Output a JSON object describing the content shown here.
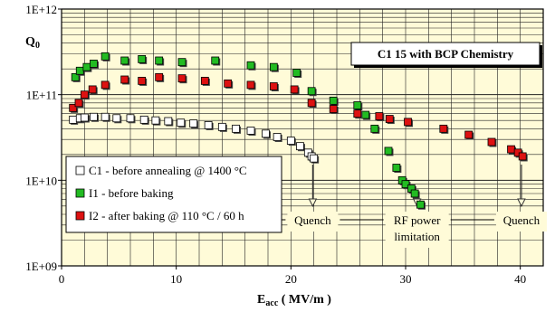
{
  "chart_data": {
    "type": "scatter",
    "title_box": "C1 15 with BCP Chemistry",
    "xlabel_main": "E",
    "xlabel_sub": "acc",
    "xlabel_unit": " ( MV/m )",
    "ylabel_main": "Q",
    "ylabel_sub": "0",
    "x_ticks": [
      "0",
      "10",
      "20",
      "30",
      "40"
    ],
    "y_ticks": [
      "1E+09",
      "1E+10",
      "1E+11",
      "1E+12"
    ],
    "xlim": [
      0,
      42
    ],
    "ylim_log10": [
      9,
      12
    ],
    "y_scale": "log",
    "grid": true,
    "legend_position": "lower-left",
    "series": [
      {
        "name": "C1 - before annealing @ 1400 °C",
        "color": "#ffffff",
        "x": [
          1.0,
          1.6,
          2.0,
          2.8,
          3.8,
          4.8,
          6.0,
          7.2,
          8.2,
          9.3,
          10.4,
          11.5,
          12.8,
          14.0,
          15.2,
          16.5,
          17.8,
          18.8,
          20.0,
          20.8,
          21.5,
          21.8,
          22.0
        ],
        "y": [
          51000000000.0,
          53000000000.0,
          54000000000.0,
          55000000000.0,
          55000000000.0,
          53000000000.0,
          53000000000.0,
          51000000000.0,
          50000000000.0,
          49000000000.0,
          47000000000.0,
          46000000000.0,
          44000000000.0,
          42000000000.0,
          40000000000.0,
          38000000000.0,
          35000000000.0,
          32000000000.0,
          29000000000.0,
          25000000000.0,
          21000000000.0,
          19000000000.0,
          18000000000.0
        ]
      },
      {
        "name": "I1 - before baking",
        "color": "#22bb22",
        "x": [
          1.2,
          1.6,
          2.2,
          2.8,
          3.8,
          5.5,
          7.0,
          8.5,
          10.5,
          13.4,
          16.5,
          18.5,
          20.5,
          21.8,
          23.7,
          25.8,
          26.5,
          27.3,
          28.5,
          29.2,
          29.7,
          30.0,
          30.5,
          30.8,
          31.3
        ],
        "y": [
          160000000000.0,
          190000000000.0,
          210000000000.0,
          230000000000.0,
          280000000000.0,
          250000000000.0,
          260000000000.0,
          250000000000.0,
          240000000000.0,
          250000000000.0,
          220000000000.0,
          210000000000.0,
          180000000000.0,
          110000000000.0,
          85000000000.0,
          75000000000.0,
          58000000000.0,
          40000000000.0,
          22000000000.0,
          14000000000.0,
          10000000000.0,
          9000000000.0,
          8000000000.0,
          7000000000.0,
          5200000000.0
        ]
      },
      {
        "name": "I2 - after baking @ 110 °C / 60 h",
        "color": "#dd1111",
        "x": [
          1.0,
          1.5,
          2.0,
          2.7,
          3.8,
          5.5,
          7.0,
          8.5,
          10.5,
          12.5,
          14.5,
          16.5,
          18.5,
          20.3,
          21.8,
          23.7,
          25.8,
          27.7,
          28.6,
          30.2,
          33.3,
          35.5,
          37.5,
          39.2,
          39.8,
          40.2
        ],
        "y": [
          70000000000.0,
          80000000000.0,
          100000000000.0,
          115000000000.0,
          130000000000.0,
          150000000000.0,
          145000000000.0,
          160000000000.0,
          155000000000.0,
          145000000000.0,
          135000000000.0,
          130000000000.0,
          125000000000.0,
          115000000000.0,
          80000000000.0,
          68000000000.0,
          60000000000.0,
          56000000000.0,
          52000000000.0,
          48000000000.0,
          40000000000.0,
          34000000000.0,
          28000000000.0,
          23000000000.0,
          21000000000.0,
          19000000000.0
        ]
      }
    ],
    "annotations": [
      {
        "text": "Quench",
        "lines": [
          "Quench"
        ],
        "arrow_x": 21.9
      },
      {
        "text": "RF power limitation",
        "lines": [
          "RF power",
          "limitation"
        ],
        "arrow_x": 31.0
      },
      {
        "text": "Quench",
        "lines": [
          "Quench"
        ],
        "arrow_x": 40.1
      }
    ]
  }
}
